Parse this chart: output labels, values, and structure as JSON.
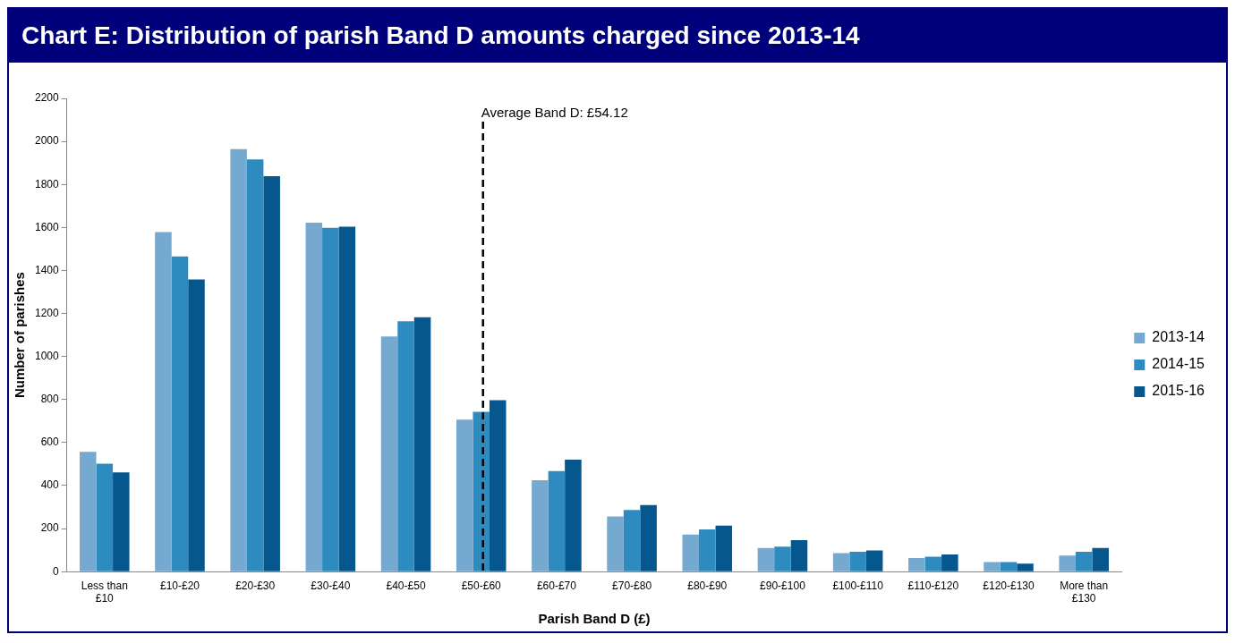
{
  "chart_data": {
    "type": "bar",
    "title": "Chart E: Distribution of parish Band D amounts charged since 2013-14",
    "xlabel": "Parish Band D (£)",
    "ylabel": "Number of parishes",
    "categories": [
      "Less than £10",
      "£10-£20",
      "£20-£30",
      "£30-£40",
      "£40-£50",
      "£50-£60",
      "£60-£70",
      "£70-£80",
      "£80-£90",
      "£90-£100",
      "£100-£110",
      "£110-£120",
      "£120-£130",
      "More than £130"
    ],
    "series": [
      {
        "name": "2013-14",
        "color": "#75a9d0",
        "values": [
          557,
          1579,
          1964,
          1622,
          1093,
          707,
          425,
          256,
          172,
          110,
          86,
          63,
          44,
          75
        ]
      },
      {
        "name": "2014-15",
        "color": "#2e8bc0",
        "values": [
          502,
          1465,
          1916,
          1598,
          1164,
          743,
          467,
          287,
          196,
          116,
          92,
          69,
          44,
          92
        ]
      },
      {
        "name": "2015-16",
        "color": "#06578d",
        "values": [
          461,
          1358,
          1838,
          1603,
          1183,
          797,
          521,
          310,
          214,
          146,
          99,
          80,
          37,
          110
        ]
      }
    ],
    "ylim": [
      0,
      2200
    ],
    "yticks": [
      0,
      200,
      400,
      600,
      800,
      1000,
      1200,
      1400,
      1600,
      1800,
      2000,
      2200
    ],
    "grid": false,
    "legend": "right",
    "ref_lines": [
      {
        "axis": "x",
        "value": "£50-£60",
        "label": "Average Band D: £54.12",
        "color": "#000000",
        "line_style": "dashed"
      }
    ]
  }
}
